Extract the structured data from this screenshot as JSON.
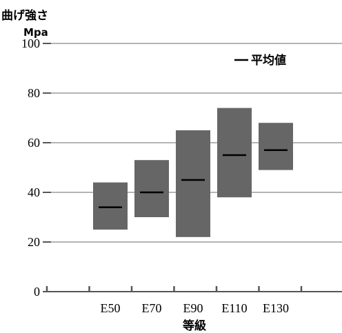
{
  "chart_data": {
    "type": "range-bar",
    "ylabel": "曲げ強さ",
    "yunit": "Mpa",
    "xlabel": "等級",
    "ylim": [
      0,
      100
    ],
    "yticks": [
      0,
      20,
      40,
      60,
      80,
      100
    ],
    "grid": true,
    "legend": {
      "label": "平均値",
      "position": "top-right"
    },
    "categories": [
      "E50",
      "E70",
      "E90",
      "E110",
      "E130"
    ],
    "series": [
      {
        "name": "平均値",
        "min": [
          25,
          30,
          22,
          38,
          49
        ],
        "max": [
          44,
          53,
          65,
          74,
          68
        ],
        "mean": [
          34,
          40,
          45,
          55,
          57
        ]
      }
    ],
    "colors": {
      "bar": "#666666",
      "mean_line": "#000000",
      "grid": "#888888",
      "axis": "#555555"
    }
  }
}
